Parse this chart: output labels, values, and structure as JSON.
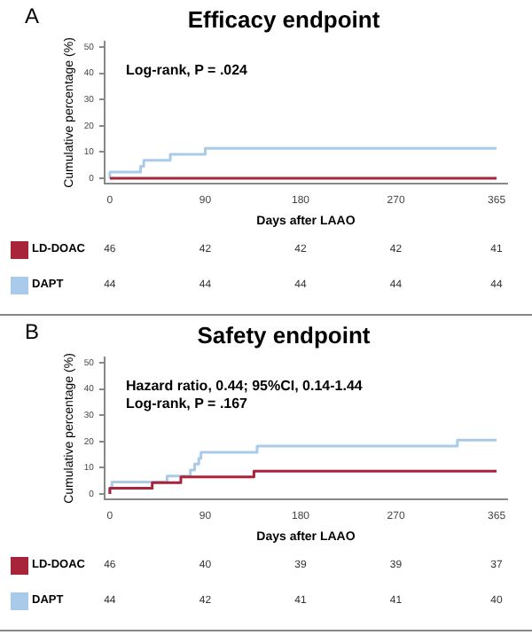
{
  "chart_data": [
    {
      "type": "step",
      "title": "Efficacy endpoint",
      "xlabel": "Days after LAAO",
      "ylabel": "Cumulative percentage (%)",
      "xlim": [
        -5,
        375
      ],
      "xticks": [
        0,
        90,
        180,
        270,
        365
      ],
      "ylim": [
        -2,
        52
      ],
      "yticks": [
        0,
        10,
        20,
        30,
        40,
        50
      ],
      "grid": false,
      "legend": "bottom",
      "marker": "none",
      "series": [
        {
          "name": "LD-DOAC",
          "color": "#a8243a",
          "x": [
            0,
            365
          ],
          "values": [
            0,
            0
          ]
        },
        {
          "name": "DAPT",
          "color": "#a9cbe9",
          "x": [
            0,
            29,
            32,
            57,
            90,
            358,
            365
          ],
          "values": [
            0,
            2.3,
            4.5,
            6.8,
            9.1,
            11.4,
            11.4
          ]
        }
      ],
      "annotations": [
        "A",
        "Log-rank, P = .024",
        "46",
        "42",
        "42",
        "42",
        "41",
        "44",
        "44",
        "44",
        "44",
        "44"
      ]
    },
    {
      "type": "step",
      "title": "Safety endpoint",
      "xlabel": "Days after LAAO",
      "ylabel": "Cumulative percentage (%)",
      "xlim": [
        -5,
        375
      ],
      "xticks": [
        0,
        90,
        180,
        270,
        365
      ],
      "ylim": [
        -2,
        52
      ],
      "yticks": [
        0,
        10,
        20,
        30,
        40,
        50
      ],
      "grid": false,
      "legend": "bottom",
      "marker": "none",
      "series": [
        {
          "name": "LD-DOAC",
          "color": "#a8243a",
          "x": [
            0,
            40,
            67,
            136,
            363,
            365
          ],
          "values": [
            0,
            2.2,
            4.3,
            6.5,
            8.7,
            8.7
          ]
        },
        {
          "name": "DAPT",
          "color": "#a9cbe9",
          "x": [
            0,
            2,
            54,
            76,
            80,
            84,
            86,
            139,
            328,
            360,
            365
          ],
          "values": [
            0,
            2.3,
            4.5,
            6.8,
            9.1,
            11.4,
            13.6,
            15.9,
            18.2,
            20.5,
            20.5
          ]
        }
      ],
      "annotations": [
        "B",
        "Hazard ratio, 0.44; 95%CI, 0.14-1.44",
        "Log-rank, P = .167",
        "46",
        "40",
        "39",
        "39",
        "37",
        "44",
        "42",
        "41",
        "41",
        "40"
      ]
    }
  ]
}
